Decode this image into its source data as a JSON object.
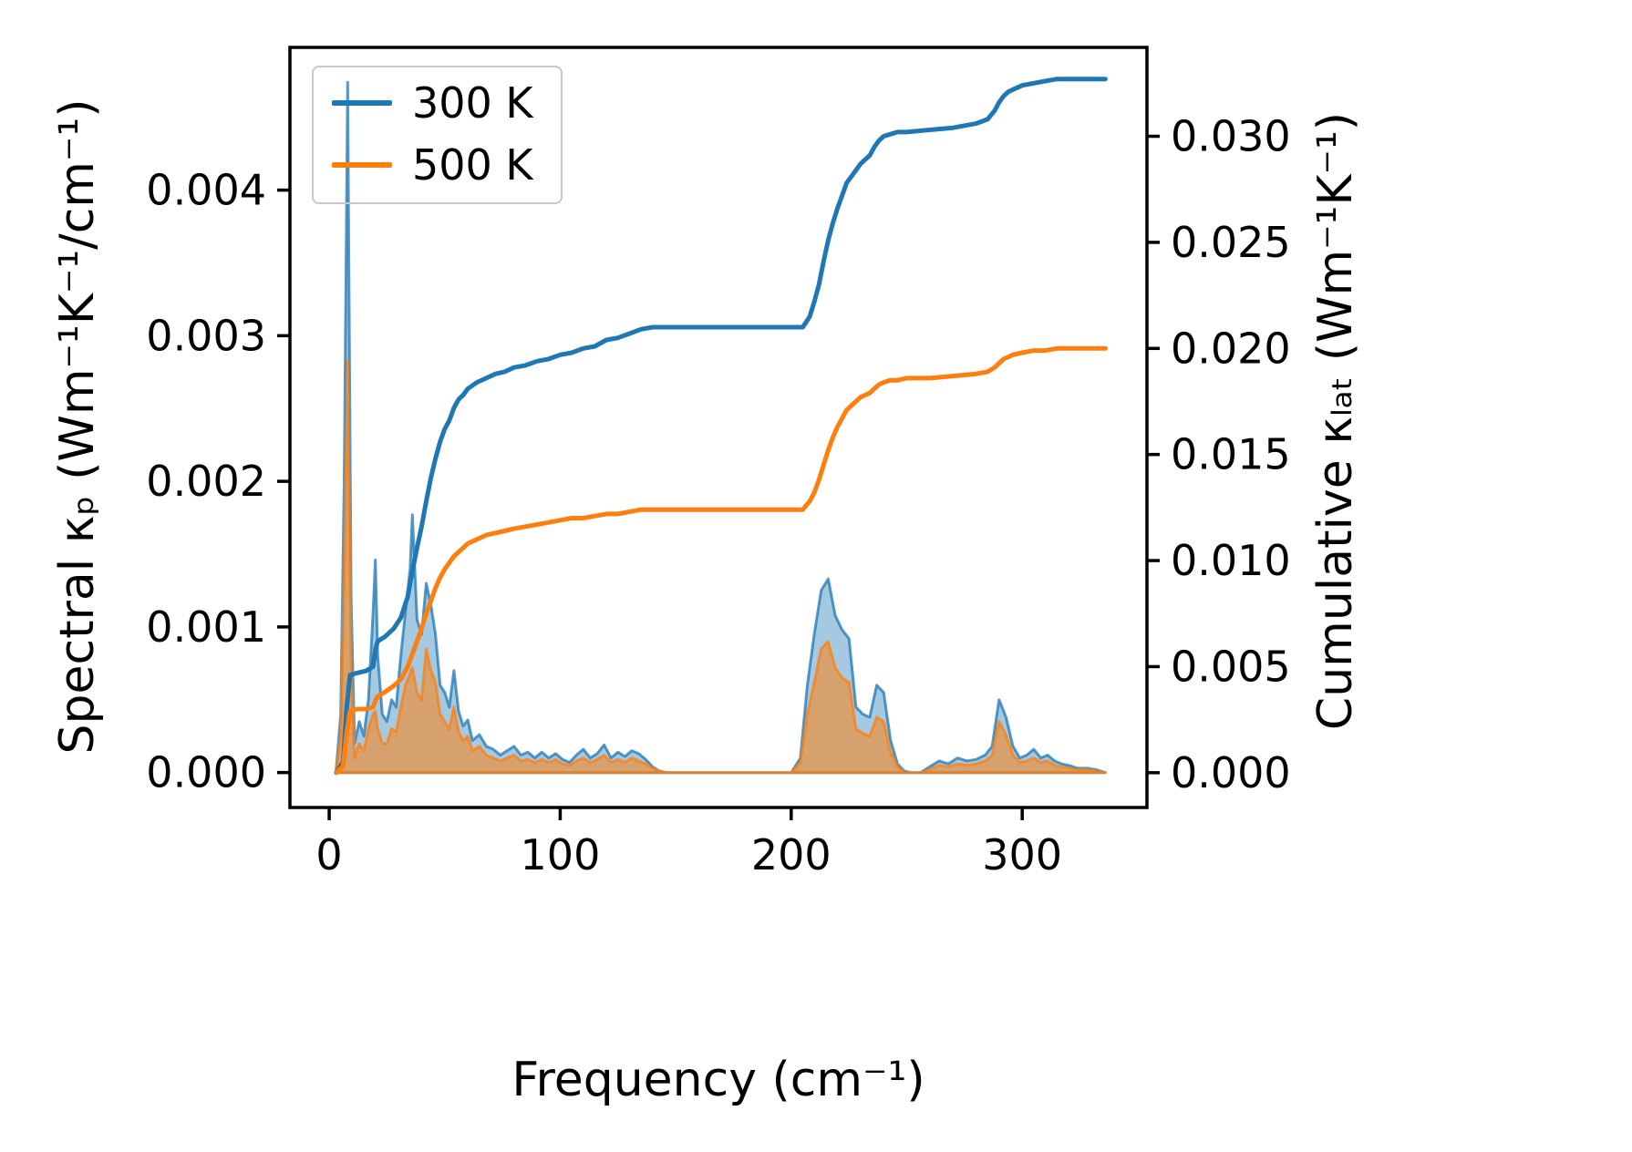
{
  "figure": {
    "background": "#ffffff",
    "axis_color": "#000000",
    "accent_blue": "#1f77b4",
    "accent_orange": "#ff7f0e"
  },
  "chart_data": {
    "type": "area+line",
    "title": "",
    "xlabel": "Frequency (cm⁻¹)",
    "ylabel_left": "Spectral κₚ (Wm⁻¹K⁻¹/cm⁻¹)",
    "ylabel_right": "Cumulative κₗₐₜ (Wm⁻¹K⁻¹)",
    "xlim": [
      -17,
      354
    ],
    "ylim_left": [
      -0.00024,
      0.00498
    ],
    "ylim_right": [
      -0.00164,
      0.03419
    ],
    "grid": false,
    "legend_position": "upper-left",
    "xticks": [
      0,
      100,
      200,
      300
    ],
    "xtick_labels": [
      "0",
      "100",
      "200",
      "300"
    ],
    "yticks_left": [
      0.0,
      0.001,
      0.002,
      0.003,
      0.004
    ],
    "ytick_labels_left": [
      "0.000",
      "0.001",
      "0.002",
      "0.003",
      "0.004"
    ],
    "yticks_right": [
      0.0,
      0.005,
      0.01,
      0.015,
      0.02,
      0.025,
      0.03
    ],
    "ytick_labels_right": [
      "0.000",
      "0.005",
      "0.010",
      "0.015",
      "0.020",
      "0.025",
      "0.030"
    ],
    "legend": [
      {
        "label": "300 K",
        "color": "#1f77b4"
      },
      {
        "label": "500 K",
        "color": "#ff7f0e"
      }
    ],
    "series": [
      {
        "name": "spectral-300K",
        "type": "area",
        "axis": "left",
        "color": "#1f77b4",
        "fill_opacity": 0.4,
        "x": [
          3,
          5,
          6.5,
          8,
          9.5,
          11,
          13,
          15,
          17,
          19,
          20,
          21,
          23,
          25,
          27,
          29,
          31,
          33,
          35,
          36,
          38,
          40,
          42,
          44,
          46,
          48,
          50,
          52,
          54,
          56,
          58,
          60,
          62,
          65,
          68,
          71,
          74,
          77,
          80,
          83,
          86,
          89,
          92,
          95,
          98,
          101,
          104,
          107,
          110,
          113,
          116,
          119,
          122,
          125,
          128,
          131,
          134,
          137,
          140,
          143,
          146,
          150,
          200,
          204,
          207,
          210,
          213,
          216,
          219,
          222,
          225,
          228,
          231,
          234,
          237,
          240,
          243,
          246,
          249,
          252,
          256,
          260,
          264,
          268,
          272,
          276,
          280,
          284,
          287,
          290,
          293,
          296,
          299,
          302,
          305,
          308,
          311,
          314,
          317,
          320,
          324,
          328,
          332,
          336
        ],
        "y": [
          2e-05,
          0.0004,
          0.002,
          0.00474,
          0.0012,
          0.0002,
          0.00035,
          0.00025,
          0.0005,
          0.0011,
          0.00146,
          0.0008,
          0.0004,
          0.00035,
          0.0005,
          0.00045,
          0.0008,
          0.0011,
          0.0014,
          0.00177,
          0.00105,
          0.00095,
          0.0013,
          0.00115,
          0.00095,
          0.0006,
          0.00055,
          0.00045,
          0.0007,
          0.00042,
          0.00032,
          0.00036,
          0.00022,
          0.00026,
          0.00018,
          0.00016,
          0.00012,
          0.00015,
          0.00018,
          0.00012,
          0.00014,
          0.0001,
          0.00014,
          0.0001,
          0.00013,
          9e-05,
          7e-05,
          0.00012,
          0.00016,
          0.0001,
          0.00013,
          0.00019,
          0.0001,
          0.00014,
          0.00011,
          0.00015,
          0.00013,
          9e-05,
          4e-05,
          1e-05,
          0,
          0,
          0,
          0.0001,
          0.0006,
          0.00095,
          0.00125,
          0.00133,
          0.00108,
          0.00098,
          0.00092,
          0.00045,
          0.0004,
          0.00038,
          0.0006,
          0.00055,
          0.00022,
          6e-05,
          1e-05,
          0,
          0,
          4e-05,
          8e-05,
          6e-05,
          0.0001,
          8e-05,
          9e-05,
          0.00012,
          0.00018,
          0.0005,
          0.00038,
          0.00018,
          0.0001,
          0.00012,
          0.00016,
          0.0001,
          0.00012,
          8e-05,
          6e-05,
          5e-05,
          3e-05,
          3e-05,
          2e-05,
          0
        ]
      },
      {
        "name": "spectral-500K",
        "type": "area",
        "axis": "left",
        "color": "#ff7f0e",
        "fill_opacity": 0.55,
        "x": [
          3,
          5,
          6.5,
          8,
          9.5,
          11,
          13,
          15,
          17,
          19,
          20,
          21,
          23,
          25,
          27,
          29,
          31,
          33,
          35,
          36,
          38,
          40,
          42,
          44,
          46,
          48,
          50,
          52,
          54,
          56,
          58,
          60,
          62,
          65,
          68,
          71,
          74,
          77,
          80,
          83,
          86,
          89,
          92,
          95,
          98,
          101,
          104,
          107,
          110,
          113,
          116,
          119,
          122,
          125,
          128,
          131,
          134,
          137,
          140,
          143,
          146,
          150,
          200,
          204,
          207,
          210,
          213,
          216,
          219,
          222,
          225,
          228,
          231,
          234,
          237,
          240,
          243,
          246,
          249,
          252,
          256,
          260,
          264,
          268,
          272,
          276,
          280,
          284,
          287,
          290,
          293,
          296,
          299,
          302,
          305,
          308,
          311,
          314,
          317,
          320,
          324,
          328,
          332,
          336
        ],
        "y": [
          1e-05,
          0.00025,
          0.0013,
          0.00283,
          0.0007,
          0.0001,
          0.0002,
          0.00015,
          0.0003,
          0.0004,
          0.00042,
          0.0003,
          0.0002,
          0.0002,
          0.0003,
          0.00028,
          0.00045,
          0.0006,
          0.00068,
          0.00072,
          0.00055,
          0.0005,
          0.00085,
          0.0007,
          0.00062,
          0.0004,
          0.00035,
          0.0003,
          0.00045,
          0.00028,
          0.00022,
          0.00025,
          0.00015,
          0.00018,
          0.00012,
          0.0001,
          8e-05,
          0.0001,
          0.00012,
          8e-05,
          9e-05,
          7e-05,
          9e-05,
          7e-05,
          9e-05,
          6e-05,
          5e-05,
          8e-05,
          0.0001,
          7e-05,
          9e-05,
          0.00012,
          7e-05,
          9e-05,
          7e-05,
          0.0001,
          8e-05,
          6e-05,
          3e-05,
          1e-05,
          0,
          0,
          0,
          7e-05,
          0.0004,
          0.00062,
          0.00085,
          0.0009,
          0.00072,
          0.00065,
          0.00062,
          0.0003,
          0.00027,
          0.00025,
          0.00038,
          0.00035,
          0.00014,
          4e-05,
          0,
          0,
          0,
          2e-05,
          5e-05,
          4e-05,
          6e-05,
          5e-05,
          6e-05,
          8e-05,
          0.00012,
          0.00035,
          0.00026,
          0.00012,
          7e-05,
          8e-05,
          0.0001,
          7e-05,
          8e-05,
          5e-05,
          4e-05,
          3e-05,
          2e-05,
          2e-05,
          1e-05,
          0
        ]
      },
      {
        "name": "cumulative-300K",
        "type": "line",
        "axis": "right",
        "color": "#1f77b4",
        "x": [
          3,
          6,
          7.5,
          9,
          12,
          16,
          19,
          20,
          21,
          24,
          28,
          31,
          34,
          36,
          38,
          40,
          42,
          44,
          46,
          48,
          50,
          52,
          54,
          56,
          58,
          60,
          64,
          68,
          72,
          76,
          80,
          85,
          90,
          95,
          100,
          105,
          110,
          115,
          120,
          125,
          130,
          135,
          140,
          150,
          205,
          208,
          210,
          212,
          214,
          216,
          218,
          220,
          222,
          224,
          226,
          228,
          230,
          232,
          234,
          236,
          238,
          240,
          243,
          246,
          250,
          260,
          270,
          280,
          285,
          288,
          290,
          292,
          294,
          296,
          300,
          305,
          310,
          315,
          320,
          336
        ],
        "y": [
          0,
          0.0005,
          0.003,
          0.0046,
          0.0047,
          0.0048,
          0.005,
          0.0058,
          0.0062,
          0.0064,
          0.0068,
          0.0073,
          0.0083,
          0.0095,
          0.0106,
          0.0116,
          0.0128,
          0.0139,
          0.0148,
          0.0156,
          0.0162,
          0.0166,
          0.0172,
          0.0176,
          0.0178,
          0.0181,
          0.0184,
          0.0186,
          0.0188,
          0.0189,
          0.0191,
          0.0192,
          0.0194,
          0.0195,
          0.0197,
          0.0198,
          0.02,
          0.0201,
          0.0204,
          0.0205,
          0.0207,
          0.0209,
          0.021,
          0.021,
          0.021,
          0.0215,
          0.0222,
          0.023,
          0.0241,
          0.0251,
          0.0259,
          0.0266,
          0.0272,
          0.0278,
          0.0281,
          0.0284,
          0.0287,
          0.0289,
          0.0291,
          0.0295,
          0.0298,
          0.03,
          0.0301,
          0.0302,
          0.0302,
          0.0303,
          0.0304,
          0.0306,
          0.0308,
          0.0312,
          0.0316,
          0.0319,
          0.0321,
          0.0322,
          0.0324,
          0.0325,
          0.0326,
          0.0327,
          0.0327,
          0.0327
        ]
      },
      {
        "name": "cumulative-500K",
        "type": "line",
        "axis": "right",
        "color": "#ff7f0e",
        "x": [
          3,
          6,
          7.5,
          9,
          12,
          16,
          19,
          20,
          21,
          24,
          28,
          31,
          34,
          36,
          38,
          40,
          42,
          44,
          46,
          48,
          50,
          52,
          54,
          56,
          58,
          60,
          64,
          68,
          72,
          76,
          80,
          85,
          90,
          95,
          100,
          105,
          110,
          115,
          120,
          125,
          130,
          135,
          140,
          150,
          205,
          208,
          210,
          212,
          214,
          216,
          218,
          220,
          222,
          224,
          226,
          228,
          230,
          232,
          234,
          236,
          238,
          240,
          243,
          246,
          250,
          260,
          270,
          280,
          285,
          288,
          290,
          292,
          294,
          296,
          300,
          305,
          310,
          315,
          320,
          336
        ],
        "y": [
          0,
          0.0003,
          0.0018,
          0.0029,
          0.003,
          0.003,
          0.0031,
          0.0034,
          0.0036,
          0.0038,
          0.0041,
          0.0044,
          0.005,
          0.0056,
          0.0062,
          0.0068,
          0.0075,
          0.0081,
          0.0087,
          0.0092,
          0.0096,
          0.0099,
          0.0102,
          0.0104,
          0.0106,
          0.0108,
          0.011,
          0.0112,
          0.0113,
          0.0114,
          0.0115,
          0.0116,
          0.0117,
          0.0118,
          0.0119,
          0.012,
          0.012,
          0.0121,
          0.0122,
          0.0122,
          0.0123,
          0.0124,
          0.0124,
          0.0124,
          0.0124,
          0.0128,
          0.0132,
          0.0138,
          0.0145,
          0.0152,
          0.0158,
          0.0163,
          0.0167,
          0.0171,
          0.0173,
          0.0175,
          0.0177,
          0.0178,
          0.0179,
          0.0181,
          0.0183,
          0.0184,
          0.0185,
          0.0185,
          0.0186,
          0.0186,
          0.0187,
          0.0188,
          0.0189,
          0.0191,
          0.0193,
          0.0195,
          0.0196,
          0.0197,
          0.0198,
          0.0199,
          0.0199,
          0.02,
          0.02,
          0.02
        ]
      }
    ]
  }
}
